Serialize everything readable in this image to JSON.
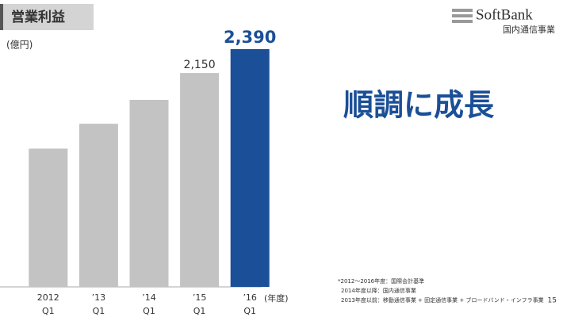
{
  "header": {
    "title": "営業利益",
    "brand": "SoftBank",
    "division": "国内通信事業",
    "message": "順調に成長",
    "page": "15"
  },
  "footnotes": [
    "*2012～2016年度：国際会計基準",
    "2014年度以降：国内通信事業",
    "2013年度以前：移動通信事業 + 固定通信事業 + ブロードバンド・インフラ事業"
  ],
  "chart_data": {
    "type": "bar",
    "y_unit": "(億円)",
    "x_unit": "(年度)",
    "categories": [
      "2012",
      "’13",
      "’14",
      "’15",
      "’16"
    ],
    "sub_categories": [
      "Q1",
      "Q1",
      "Q1",
      "Q1",
      "Q1"
    ],
    "values": [
      1390,
      1640,
      1880,
      2150,
      2390
    ],
    "value_labels": [
      null,
      null,
      null,
      "2,150",
      "2,390"
    ],
    "colors": [
      "#c3c3c3",
      "#c3c3c3",
      "#c3c3c3",
      "#c3c3c3",
      "#1b4f97"
    ]
  }
}
